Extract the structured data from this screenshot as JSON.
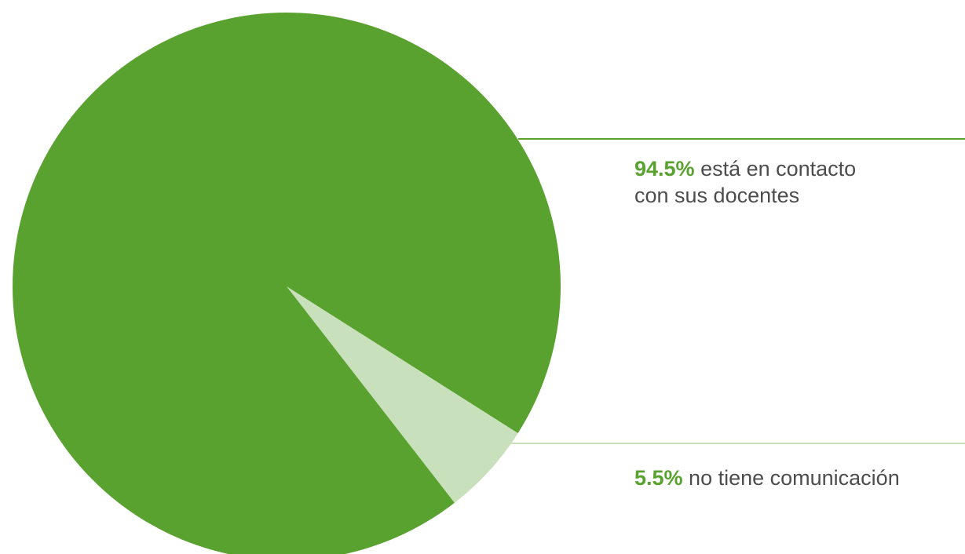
{
  "chart_data": {
    "type": "pie",
    "slices": [
      {
        "label": "está en contacto con sus docentes",
        "value": 94.5,
        "display": "94.5%",
        "color": "#59a22f"
      },
      {
        "label": "no tiene comunicación",
        "value": 5.5,
        "display": "5.5%",
        "color": "#c8e0bb"
      }
    ]
  },
  "callouts": [
    {
      "pct": "94.5%",
      "line1": " está en contacto",
      "line2": "con sus docentes",
      "pct_color": "#59a22f"
    },
    {
      "pct": "5.5%",
      "line1": " no tiene comunicación",
      "pct_color": "#59a22f"
    }
  ],
  "colors": {
    "main_slice": "#59a22f",
    "minor_slice": "#c8e0bb",
    "text": "#4d4d4d"
  }
}
